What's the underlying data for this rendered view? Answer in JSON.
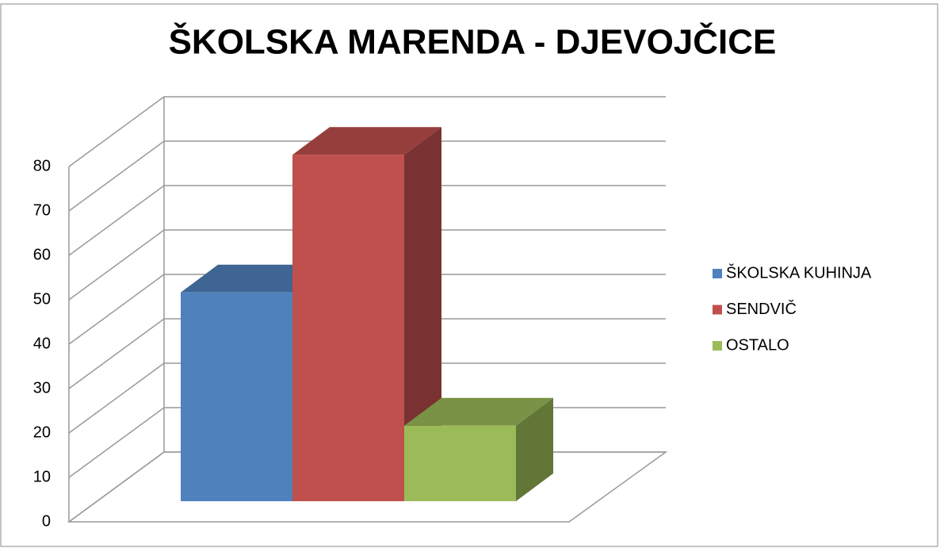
{
  "chart_data": {
    "type": "bar3d",
    "title": "ŠKOLSKA MARENDA - DJEVOJČICE",
    "categories": [
      null
    ],
    "series": [
      {
        "name": "ŠKOLSKA KUHINJA",
        "color": "#4f81bd",
        "values": [
          47
        ]
      },
      {
        "name": "SENDVIČ",
        "color": "#c0504d",
        "values": [
          78
        ]
      },
      {
        "name": "OSTALO",
        "color": "#9bbb59",
        "values": [
          17
        ]
      }
    ],
    "ylim": [
      0,
      80
    ],
    "yticks": [
      0,
      10,
      20,
      30,
      40,
      50,
      60,
      70,
      80
    ],
    "grid": true,
    "legend": "right"
  }
}
